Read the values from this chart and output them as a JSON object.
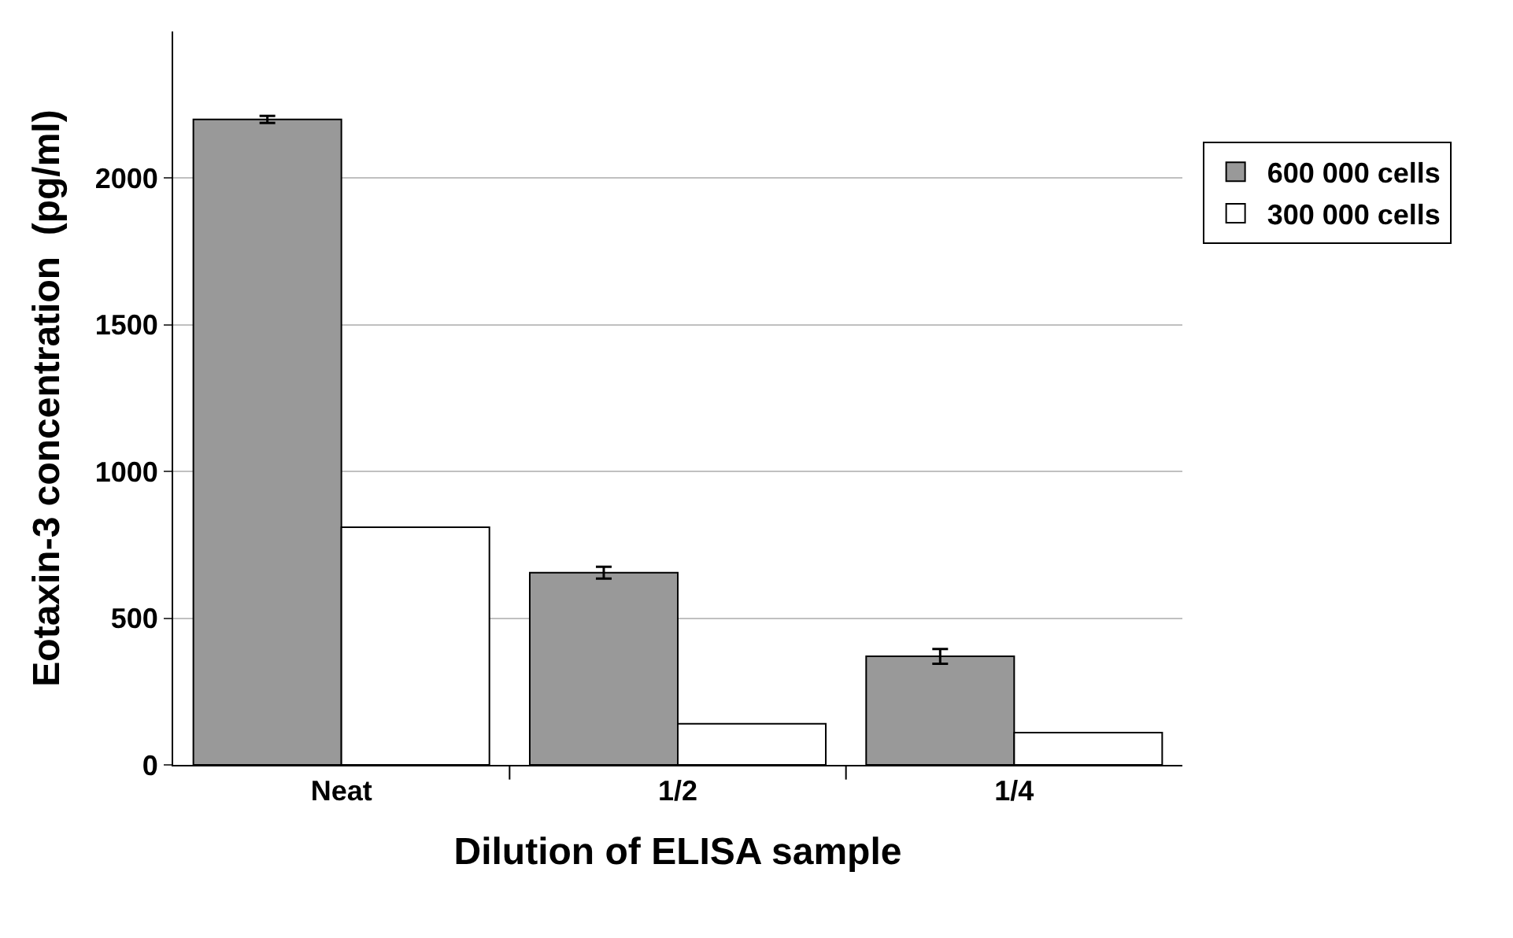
{
  "chart_data": {
    "type": "bar",
    "xlabel": "Dilution of ELISA sample",
    "ylabel": "Eotaxin-3 concentration  (pg/ml)",
    "categories": [
      "Neat",
      "1/2",
      "1/4"
    ],
    "series": [
      {
        "name": "600 000 cells",
        "color": "#999999",
        "values": [
          2200,
          655,
          370
        ],
        "errors": [
          12,
          20,
          25
        ]
      },
      {
        "name": "300 000 cells",
        "color": "#ffffff",
        "values": [
          810,
          140,
          110
        ]
      }
    ],
    "ylim": [
      0,
      2500
    ],
    "yticks": [
      0,
      500,
      1000,
      1500,
      2000
    ],
    "grid": "y",
    "legend": "right"
  }
}
